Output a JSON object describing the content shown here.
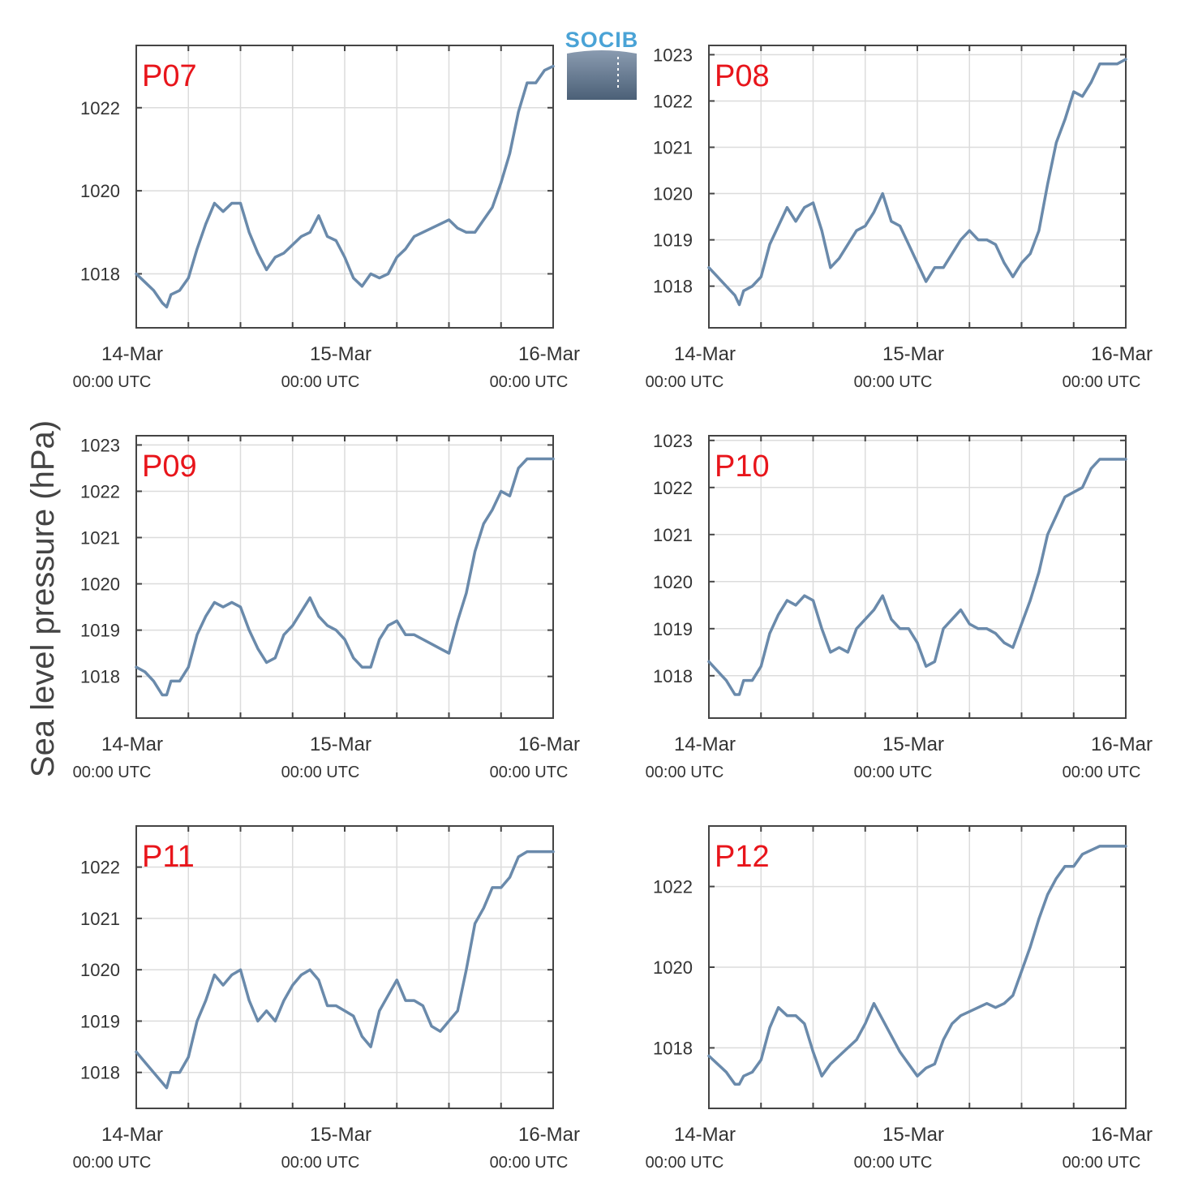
{
  "figure": {
    "ylabel": "Sea level pressure (hPa)",
    "logo_text": "SOCIB",
    "colors": {
      "line": "#6a8aab",
      "label": "#e8151b",
      "grid": "#dcdcdc",
      "axis": "#444444"
    }
  },
  "chart_data": [
    {
      "type": "line",
      "label": "P07",
      "x_ticks": [
        {
          "line1": "14-Mar",
          "line2": "00:00 UTC"
        },
        {
          "line1": "15-Mar",
          "line2": "00:00 UTC"
        },
        {
          "line1": "16-Mar",
          "line2": "00:00 UTC"
        }
      ],
      "x_unit": "hours since 14-Mar 00:00 UTC",
      "xlim": [
        0,
        48
      ],
      "ylim": [
        1016.7,
        1023.5
      ],
      "yticks": [
        1018,
        1020,
        1022
      ],
      "grid": true,
      "x": [
        0,
        1,
        2,
        3,
        3.5,
        4,
        5,
        6,
        7,
        8,
        9,
        10,
        11,
        12,
        13,
        14,
        15,
        16,
        17,
        18,
        19,
        20,
        21,
        22,
        23,
        24,
        25,
        26,
        27,
        28,
        29,
        30,
        31,
        32,
        33,
        34,
        35,
        36,
        37,
        38,
        39,
        40,
        41,
        42,
        43,
        44,
        45,
        46,
        47,
        48
      ],
      "y": [
        1018.0,
        1017.8,
        1017.6,
        1017.3,
        1017.2,
        1017.5,
        1017.6,
        1017.9,
        1018.6,
        1019.2,
        1019.7,
        1019.5,
        1019.7,
        1019.7,
        1019.0,
        1018.5,
        1018.1,
        1018.4,
        1018.5,
        1018.7,
        1018.9,
        1019.0,
        1019.4,
        1018.9,
        1018.8,
        1018.4,
        1017.9,
        1017.7,
        1018.0,
        1017.9,
        1018.0,
        1018.4,
        1018.6,
        1018.9,
        1019.0,
        1019.1,
        1019.2,
        1019.3,
        1019.1,
        1019.0,
        1019.0,
        1019.3,
        1019.6,
        1020.2,
        1020.9,
        1021.9,
        1022.6,
        1022.6,
        1022.9,
        1023.0
      ]
    },
    {
      "type": "line",
      "label": "P08",
      "x_ticks": [
        {
          "line1": "14-Mar",
          "line2": "00:00 UTC"
        },
        {
          "line1": "15-Mar",
          "line2": "00:00 UTC"
        },
        {
          "line1": "16-Mar",
          "line2": "00:00 UTC"
        }
      ],
      "x_unit": "hours since 14-Mar 00:00 UTC",
      "xlim": [
        0,
        48
      ],
      "ylim": [
        1017.1,
        1023.2
      ],
      "yticks": [
        1018,
        1019,
        1020,
        1021,
        1022,
        1023
      ],
      "grid": true,
      "x": [
        0,
        1,
        2,
        3,
        3.5,
        4,
        5,
        6,
        7,
        8,
        9,
        10,
        11,
        12,
        13,
        14,
        15,
        16,
        17,
        18,
        19,
        20,
        21,
        22,
        23,
        24,
        25,
        26,
        27,
        28,
        29,
        30,
        31,
        32,
        33,
        34,
        35,
        36,
        37,
        38,
        39,
        40,
        41,
        42,
        43,
        44,
        45,
        46,
        47,
        48
      ],
      "y": [
        1018.4,
        1018.2,
        1018.0,
        1017.8,
        1017.6,
        1017.9,
        1018.0,
        1018.2,
        1018.9,
        1019.3,
        1019.7,
        1019.4,
        1019.7,
        1019.8,
        1019.2,
        1018.4,
        1018.6,
        1018.9,
        1019.2,
        1019.3,
        1019.6,
        1020.0,
        1019.4,
        1019.3,
        1018.9,
        1018.5,
        1018.1,
        1018.4,
        1018.4,
        1018.7,
        1019.0,
        1019.2,
        1019.0,
        1019.0,
        1018.9,
        1018.5,
        1018.2,
        1018.5,
        1018.7,
        1019.2,
        1020.2,
        1021.1,
        1021.6,
        1022.2,
        1022.1,
        1022.4,
        1022.8,
        1022.8,
        1022.8,
        1022.9
      ]
    },
    {
      "type": "line",
      "label": "P09",
      "x_ticks": [
        {
          "line1": "14-Mar",
          "line2": "00:00 UTC"
        },
        {
          "line1": "15-Mar",
          "line2": "00:00 UTC"
        },
        {
          "line1": "16-Mar",
          "line2": "00:00 UTC"
        }
      ],
      "x_unit": "hours since 14-Mar 00:00 UTC",
      "xlim": [
        0,
        48
      ],
      "ylim": [
        1017.1,
        1023.2
      ],
      "yticks": [
        1018,
        1019,
        1020,
        1021,
        1022,
        1023
      ],
      "grid": true,
      "x": [
        0,
        1,
        2,
        3,
        3.5,
        4,
        5,
        6,
        7,
        8,
        9,
        10,
        11,
        12,
        13,
        14,
        15,
        16,
        17,
        18,
        19,
        20,
        21,
        22,
        23,
        24,
        25,
        26,
        27,
        28,
        29,
        30,
        31,
        32,
        33,
        34,
        35,
        36,
        37,
        38,
        39,
        40,
        41,
        42,
        43,
        44,
        45,
        46,
        47,
        48
      ],
      "y": [
        1018.2,
        1018.1,
        1017.9,
        1017.6,
        1017.6,
        1017.9,
        1017.9,
        1018.2,
        1018.9,
        1019.3,
        1019.6,
        1019.5,
        1019.6,
        1019.5,
        1019.0,
        1018.6,
        1018.3,
        1018.4,
        1018.9,
        1019.1,
        1019.4,
        1019.7,
        1019.3,
        1019.1,
        1019.0,
        1018.8,
        1018.4,
        1018.2,
        1018.2,
        1018.8,
        1019.1,
        1019.2,
        1018.9,
        1018.9,
        1018.8,
        1018.7,
        1018.6,
        1018.5,
        1019.2,
        1019.8,
        1020.7,
        1021.3,
        1021.6,
        1022.0,
        1021.9,
        1022.5,
        1022.7,
        1022.7,
        1022.7,
        1022.7
      ]
    },
    {
      "type": "line",
      "label": "P10",
      "x_ticks": [
        {
          "line1": "14-Mar",
          "line2": "00:00 UTC"
        },
        {
          "line1": "15-Mar",
          "line2": "00:00 UTC"
        },
        {
          "line1": "16-Mar",
          "line2": "00:00 UTC"
        }
      ],
      "x_unit": "hours since 14-Mar 00:00 UTC",
      "xlim": [
        0,
        48
      ],
      "ylim": [
        1017.1,
        1023.1
      ],
      "yticks": [
        1018,
        1019,
        1020,
        1021,
        1022,
        1023
      ],
      "grid": true,
      "x": [
        0,
        1,
        2,
        3,
        3.5,
        4,
        5,
        6,
        7,
        8,
        9,
        10,
        11,
        12,
        13,
        14,
        15,
        16,
        17,
        18,
        19,
        20,
        21,
        22,
        23,
        24,
        25,
        26,
        27,
        28,
        29,
        30,
        31,
        32,
        33,
        34,
        35,
        36,
        37,
        38,
        39,
        40,
        41,
        42,
        43,
        44,
        45,
        46,
        47,
        48
      ],
      "y": [
        1018.3,
        1018.1,
        1017.9,
        1017.6,
        1017.6,
        1017.9,
        1017.9,
        1018.2,
        1018.9,
        1019.3,
        1019.6,
        1019.5,
        1019.7,
        1019.6,
        1019.0,
        1018.5,
        1018.6,
        1018.5,
        1019.0,
        1019.2,
        1019.4,
        1019.7,
        1019.2,
        1019.0,
        1019.0,
        1018.7,
        1018.2,
        1018.3,
        1019.0,
        1019.2,
        1019.4,
        1019.1,
        1019.0,
        1019.0,
        1018.9,
        1018.7,
        1018.6,
        1019.1,
        1019.6,
        1020.2,
        1021.0,
        1021.4,
        1021.8,
        1021.9,
        1022.0,
        1022.4,
        1022.6,
        1022.6,
        1022.6,
        1022.6
      ]
    },
    {
      "type": "line",
      "label": "P11",
      "x_ticks": [
        {
          "line1": "14-Mar",
          "line2": "00:00 UTC"
        },
        {
          "line1": "15-Mar",
          "line2": "00:00 UTC"
        },
        {
          "line1": "16-Mar",
          "line2": "00:00 UTC"
        }
      ],
      "x_unit": "hours since 14-Mar 00:00 UTC",
      "xlim": [
        0,
        48
      ],
      "ylim": [
        1017.3,
        1022.8
      ],
      "yticks": [
        1018,
        1019,
        1020,
        1021,
        1022
      ],
      "grid": true,
      "x": [
        0,
        1,
        2,
        3,
        3.5,
        4,
        5,
        6,
        7,
        8,
        9,
        10,
        11,
        12,
        13,
        14,
        15,
        16,
        17,
        18,
        19,
        20,
        21,
        22,
        23,
        24,
        25,
        26,
        27,
        28,
        29,
        30,
        31,
        32,
        33,
        34,
        35,
        36,
        37,
        38,
        39,
        40,
        41,
        42,
        43,
        44,
        45,
        46,
        47,
        48
      ],
      "y": [
        1018.4,
        1018.2,
        1018.0,
        1017.8,
        1017.7,
        1018.0,
        1018.0,
        1018.3,
        1019.0,
        1019.4,
        1019.9,
        1019.7,
        1019.9,
        1020.0,
        1019.4,
        1019.0,
        1019.2,
        1019.0,
        1019.4,
        1019.7,
        1019.9,
        1020.0,
        1019.8,
        1019.3,
        1019.3,
        1019.2,
        1019.1,
        1018.7,
        1018.5,
        1019.2,
        1019.5,
        1019.8,
        1019.4,
        1019.4,
        1019.3,
        1018.9,
        1018.8,
        1019.0,
        1019.2,
        1020.0,
        1020.9,
        1021.2,
        1021.6,
        1021.6,
        1021.8,
        1022.2,
        1022.3,
        1022.3,
        1022.3,
        1022.3
      ]
    },
    {
      "type": "line",
      "label": "P12",
      "x_ticks": [
        {
          "line1": "14-Mar",
          "line2": "00:00 UTC"
        },
        {
          "line1": "15-Mar",
          "line2": "00:00 UTC"
        },
        {
          "line1": "16-Mar",
          "line2": "00:00 UTC"
        }
      ],
      "x_unit": "hours since 14-Mar 00:00 UTC",
      "xlim": [
        0,
        48
      ],
      "ylim": [
        1016.5,
        1023.5
      ],
      "yticks": [
        1018,
        1020,
        1022
      ],
      "grid": true,
      "x": [
        0,
        1,
        2,
        3,
        3.5,
        4,
        5,
        6,
        7,
        8,
        9,
        10,
        11,
        12,
        13,
        14,
        15,
        16,
        17,
        18,
        19,
        20,
        21,
        22,
        23,
        24,
        25,
        26,
        27,
        28,
        29,
        30,
        31,
        32,
        33,
        34,
        35,
        36,
        37,
        38,
        39,
        40,
        41,
        42,
        43,
        44,
        45,
        46,
        47,
        48
      ],
      "y": [
        1017.8,
        1017.6,
        1017.4,
        1017.1,
        1017.1,
        1017.3,
        1017.4,
        1017.7,
        1018.5,
        1019.0,
        1018.8,
        1018.8,
        1018.6,
        1017.9,
        1017.3,
        1017.6,
        1017.8,
        1018.0,
        1018.2,
        1018.6,
        1019.1,
        1018.7,
        1018.3,
        1017.9,
        1017.6,
        1017.3,
        1017.5,
        1017.6,
        1018.2,
        1018.6,
        1018.8,
        1018.9,
        1019.0,
        1019.1,
        1019.0,
        1019.1,
        1019.3,
        1019.9,
        1020.5,
        1021.2,
        1021.8,
        1022.2,
        1022.5,
        1022.5,
        1022.8,
        1022.9,
        1023.0,
        1023.0,
        1023.0,
        1023.0
      ]
    }
  ]
}
